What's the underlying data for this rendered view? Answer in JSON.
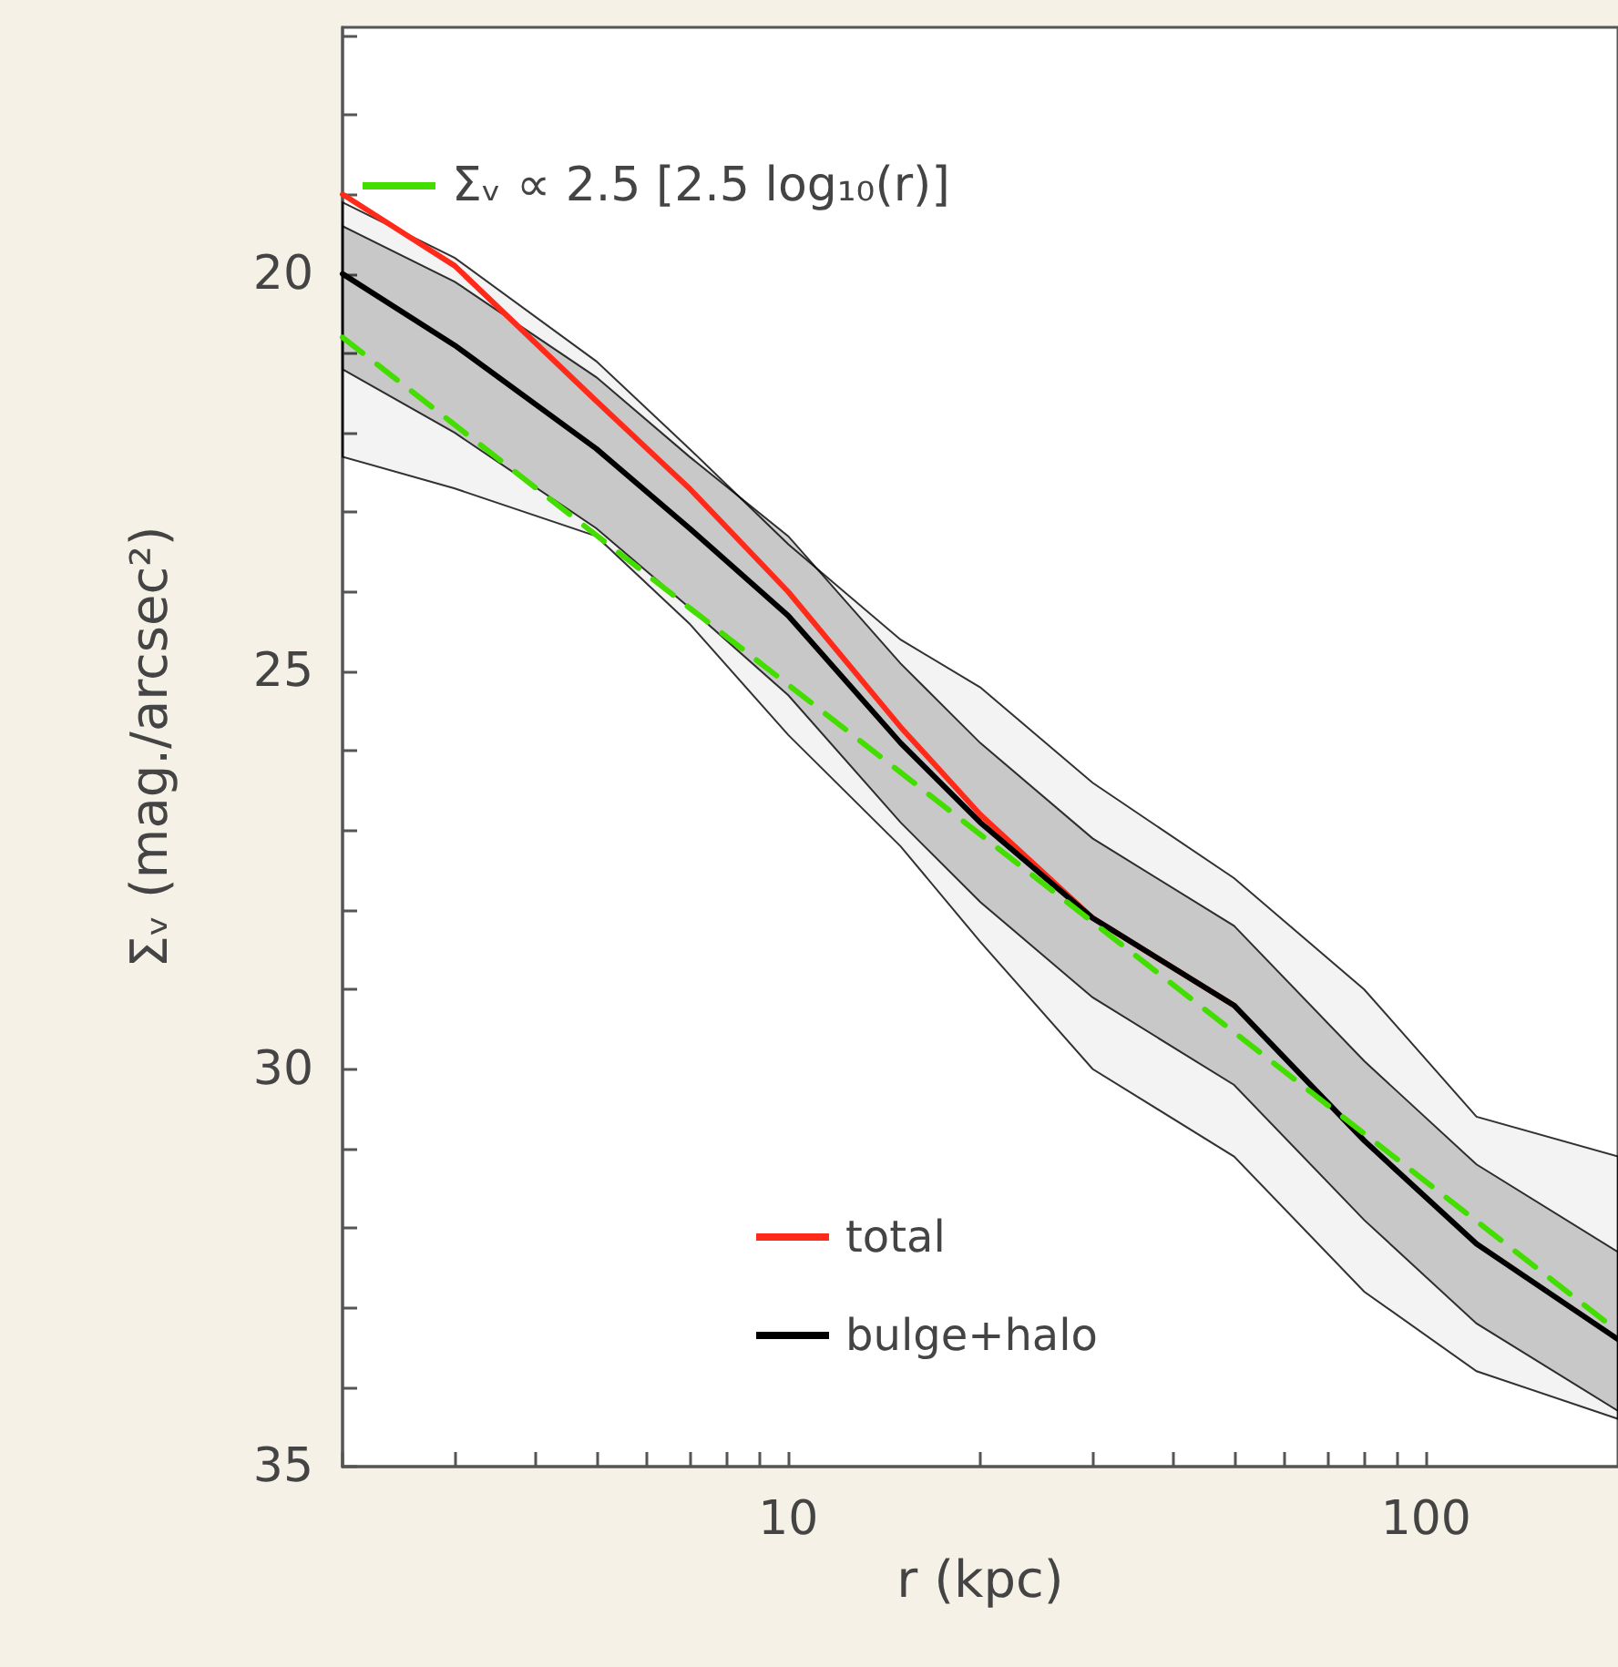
{
  "chart_data": {
    "type": "line",
    "xlabel": "r (kpc)",
    "ylabel": "Σᵥ (mag./arcsec²)",
    "x": [
      2,
      3,
      5,
      7,
      10,
      15,
      20,
      30,
      50,
      80,
      120,
      200
    ],
    "log": "x",
    "xlim": [
      2,
      200
    ],
    "ylim": [
      35,
      16.9
    ],
    "xticks": [
      {
        "value": 2,
        "label": null
      },
      {
        "value": 3,
        "label": null
      },
      {
        "value": 4,
        "label": null
      },
      {
        "value": 5,
        "label": null
      },
      {
        "value": 6,
        "label": null
      },
      {
        "value": 7,
        "label": null
      },
      {
        "value": 8,
        "label": null
      },
      {
        "value": 9,
        "label": null
      },
      10,
      {
        "value": 20,
        "label": null
      },
      {
        "value": 30,
        "label": null
      },
      {
        "value": 40,
        "label": null
      },
      {
        "value": 50,
        "label": null
      },
      {
        "value": 60,
        "label": null
      },
      {
        "value": 70,
        "label": null
      },
      {
        "value": 80,
        "label": null
      },
      {
        "value": 90,
        "label": null
      },
      100
    ],
    "yticks": [
      {
        "value": 17,
        "label": null
      },
      {
        "value": 18,
        "label": null
      },
      {
        "value": 19,
        "label": null
      },
      20,
      {
        "value": 21,
        "label": null
      },
      {
        "value": 22,
        "label": null
      },
      {
        "value": 23,
        "label": null
      },
      {
        "value": 24,
        "label": null
      },
      25,
      {
        "value": 26,
        "label": null
      },
      {
        "value": 27,
        "label": null
      },
      {
        "value": 28,
        "label": null
      },
      {
        "value": 29,
        "label": null
      },
      30,
      {
        "value": 31,
        "label": null
      },
      {
        "value": 32,
        "label": null
      },
      {
        "value": 33,
        "label": null
      },
      {
        "value": 34,
        "label": null
      },
      35
    ],
    "grid": false,
    "legend": "left",
    "marker": "none",
    "series": [
      {
        "name": "total",
        "color": "#ff2a1a",
        "line_style": "solid",
        "values": [
          19.0,
          19.9,
          21.6,
          22.7,
          24.0,
          25.7,
          26.8,
          28.1,
          29.2,
          null,
          null,
          null
        ]
      },
      {
        "name": "bulge+halo",
        "color": "#000000",
        "line_style": "solid",
        "values": [
          20.0,
          20.9,
          22.2,
          23.2,
          24.3,
          25.9,
          26.9,
          28.1,
          29.2,
          30.9,
          32.2,
          33.4
        ],
        "lower": [
          19.4,
          20.1,
          21.3,
          22.3,
          23.3,
          24.9,
          25.9,
          27.1,
          28.2,
          29.9,
          31.2,
          32.3
        ],
        "upper": [
          21.2,
          22.0,
          23.2,
          24.2,
          25.3,
          26.9,
          27.9,
          29.1,
          30.2,
          31.9,
          33.2,
          34.3
        ]
      },
      {
        "name": "Σᵥ ∝ 2.5 [2.5 log₁₀(r)]",
        "color": "#44dd00",
        "line_style": "dashed",
        "x": [
          2,
          200
        ],
        "values": [
          20.8,
          33.3
        ]
      },
      {
        "color": "#000000",
        "values": [
          null,
          null,
          null,
          null,
          null,
          null,
          null,
          null,
          null,
          null,
          null,
          null
        ],
        "lower": [
          19.1,
          19.8,
          21.1,
          22.2,
          23.4,
          24.6,
          25.2,
          26.4,
          27.6,
          29.0,
          30.6,
          31.1
        ],
        "upper": [
          22.3,
          22.7,
          23.3,
          24.4,
          25.8,
          27.2,
          28.4,
          30.0,
          31.1,
          32.8,
          33.8,
          34.4
        ]
      }
    ]
  }
}
